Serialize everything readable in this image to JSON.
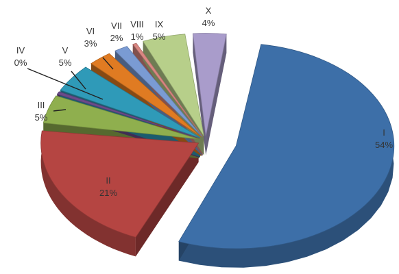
{
  "chart_data": {
    "type": "pie",
    "title": "",
    "style": "3d-exploded",
    "slices": [
      {
        "name": "I",
        "label": "I",
        "value": 54,
        "pct_label": "54%",
        "color": "#3d6fa8"
      },
      {
        "name": "II",
        "label": "II",
        "value": 21,
        "pct_label": "21%",
        "color": "#b54542"
      },
      {
        "name": "III",
        "label": "III",
        "value": 5,
        "pct_label": "5%",
        "color": "#8faf4e"
      },
      {
        "name": "IV",
        "label": "IV",
        "value": 0,
        "pct_label": "0%",
        "color": "#6a4b8a"
      },
      {
        "name": "V",
        "label": "V",
        "value": 5,
        "pct_label": "5%",
        "color": "#2f9ab8"
      },
      {
        "name": "VI",
        "label": "VI",
        "value": 3,
        "pct_label": "3%",
        "color": "#e07b22"
      },
      {
        "name": "VII",
        "label": "VII",
        "value": 2,
        "pct_label": "2%",
        "color": "#7a9bd3"
      },
      {
        "name": "VIII",
        "label": "VIII",
        "value": 1,
        "pct_label": "1%",
        "color": "#d98782"
      },
      {
        "name": "IX",
        "label": "IX",
        "value": 5,
        "pct_label": "5%",
        "color": "#b7cf8a"
      },
      {
        "name": "X",
        "label": "X",
        "value": 4,
        "pct_label": "4%",
        "color": "#a99ccb"
      }
    ]
  }
}
